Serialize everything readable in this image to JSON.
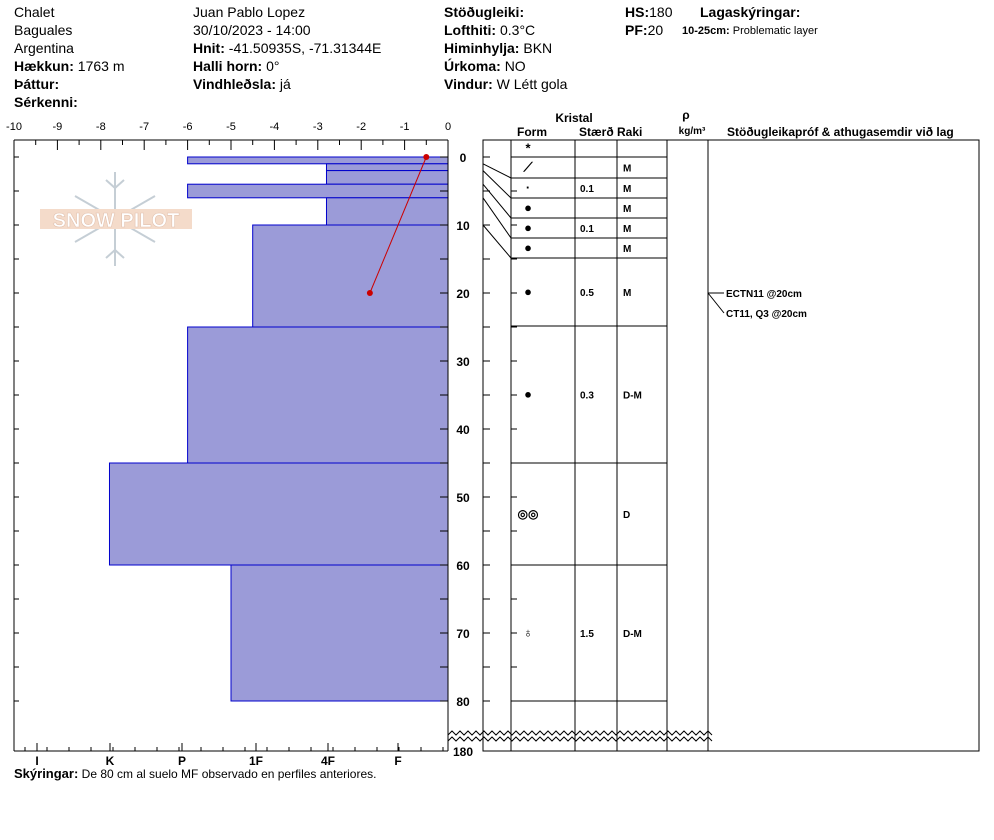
{
  "header": {
    "location": "Chalet",
    "region": "Baguales",
    "country": "Argentina",
    "elevation_label": "Hækkun:",
    "elevation_value": "1763 m",
    "aspect_label": "Þáttur:",
    "features_label": "Sérkenni:",
    "observer": "Juan Pablo  Lopez",
    "datetime": "30/10/2023 - 14:00",
    "coords_label": "Hnit:",
    "coords_value": "-41.50935S, -71.31344E",
    "slope_label": "Halli horn:",
    "slope_value": "0°",
    "wind_loading_label": "Vindhleðsla:",
    "wind_loading_value": "já",
    "stability_label": "Stöðugleiki:",
    "air_temp_label": "Lofthiti:",
    "air_temp_value": "0.3°C",
    "sky_label": "Himinhylja:",
    "sky_value": "BKN",
    "precip_label": "Úrkoma:",
    "precip_value": "NO",
    "wind_label": "Vindur:",
    "wind_value": "W Létt gola",
    "hs_label": "HS:",
    "hs_value": "180",
    "pf_label": "PF:",
    "pf_value": "20",
    "layer_notes_label": "Lagaskýringar:",
    "layer_note_range": "10-25cm:",
    "layer_note_text": "Problematic layer"
  },
  "watermark": "SNOW PILOT",
  "columns": {
    "crystal": "Kristal",
    "form": "Form",
    "size": "Stærð",
    "moisture": "Raki",
    "rho": "ρ",
    "density_unit": "kg/m³",
    "tests": "Stöðugleikapróf & athugasemdir við lag"
  },
  "footer": {
    "label": "Skýringar:",
    "text": "De 80 cm al suelo MF observado en perfiles anteriores."
  },
  "colors": {
    "layer_fill": "#9b9bd8",
    "layer_stroke": "#0000cc",
    "temp_line": "#cc0000"
  },
  "chart_data": {
    "type": "snow-profile",
    "temperature_axis": {
      "ticks": [
        "-10",
        "-9",
        "-8",
        "-7",
        "-6",
        "-5",
        "-4",
        "-3",
        "-2",
        "-1",
        "0"
      ]
    },
    "hardness_axis": {
      "ticks": [
        "I",
        "K",
        "P",
        "1F",
        "4F",
        "F"
      ]
    },
    "depth_axis": {
      "ticks": [
        "0",
        "10",
        "20",
        "30",
        "40",
        "50",
        "60",
        "70",
        "80",
        "180"
      ],
      "break_after": 80,
      "bottom": 180
    },
    "hardness_layers": [
      {
        "top": 0,
        "bottom": 1,
        "hardness_index": 6
      },
      {
        "top": 1,
        "bottom": 2,
        "hardness_index": 2.8
      },
      {
        "top": 2,
        "bottom": 4,
        "hardness_index": 2.8
      },
      {
        "top": 4,
        "bottom": 6,
        "hardness_index": 6
      },
      {
        "top": 6,
        "bottom": 10,
        "hardness_index": 2.8
      },
      {
        "top": 10,
        "bottom": 25,
        "hardness_index": 4.5
      },
      {
        "top": 25,
        "bottom": 45,
        "hardness_index": 6
      },
      {
        "top": 45,
        "bottom": 60,
        "hardness_index": 7.8
      },
      {
        "top": 60,
        "bottom": 80,
        "hardness_index": 5
      }
    ],
    "temperature_points": [
      {
        "depth": 0,
        "temp": -0.5
      },
      {
        "depth": 20,
        "temp": -1.8
      }
    ],
    "layers": [
      {
        "top": 0,
        "bottom": 1,
        "form": "*",
        "size": "",
        "moisture": ""
      },
      {
        "top": 1,
        "bottom": 2,
        "form": "⟋",
        "size": "",
        "moisture": "M"
      },
      {
        "top": 2,
        "bottom": 4,
        "form": "·",
        "size": "0.1",
        "moisture": "M"
      },
      {
        "top": 4,
        "bottom": 6,
        "form": "●",
        "size": "",
        "moisture": "M"
      },
      {
        "top": 6,
        "bottom": 10,
        "form": "●",
        "size": "0.1",
        "moisture": "M"
      },
      {
        "top": 10,
        "bottom": 15,
        "form": "●",
        "size": "",
        "moisture": "M"
      },
      {
        "top": 15,
        "bottom": 25,
        "form": "●",
        "size": "0.5",
        "moisture": "M"
      },
      {
        "top": 25,
        "bottom": 45,
        "form": "●",
        "size": "0.3",
        "moisture": "D-M"
      },
      {
        "top": 45,
        "bottom": 60,
        "form": "◎◎",
        "size": "",
        "moisture": "D"
      },
      {
        "top": 60,
        "bottom": 80,
        "form": "♁",
        "size": "1.5",
        "moisture": "D-M"
      }
    ],
    "tests": [
      {
        "depth": 20,
        "label": "ECTN11 @20cm"
      },
      {
        "depth": 20,
        "label": "CT11, Q3 @20cm"
      }
    ]
  }
}
